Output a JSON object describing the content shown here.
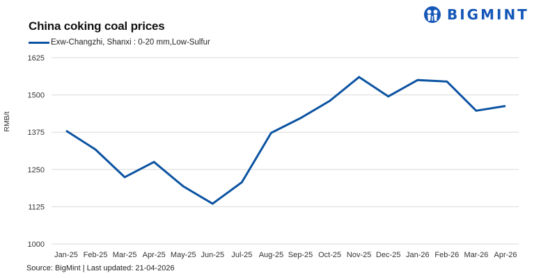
{
  "header": {
    "title": "China coking coal prices",
    "logo_text": "BIGMINT",
    "logo_icon": "bigmint-people-icon"
  },
  "legend": {
    "items": [
      {
        "label": "Exw-Changzhi, Shanxi : 0-20 mm,Low-Sulfur",
        "color": "#0B53A1"
      }
    ]
  },
  "axis": {
    "ylabel": "RMB/t",
    "yticks": [
      "1625",
      "1500",
      "1375",
      "1250",
      "1125",
      "1000"
    ]
  },
  "footer": {
    "source": "Source: BigMint | Last updated: 21-04-2026"
  },
  "colors": {
    "line": "#0B53A1",
    "brand": "#1557B8",
    "grid": "#D9D9D9"
  },
  "chart_data": {
    "type": "line",
    "title": "China coking coal prices",
    "xlabel": "",
    "ylabel": "RMB/t",
    "ylim": [
      1000,
      1625
    ],
    "yticks": [
      1000,
      1125,
      1250,
      1375,
      1500,
      1625
    ],
    "grid": true,
    "legend_position": "top-left",
    "categories": [
      "Jan-25",
      "Feb-25",
      "Mar-25",
      "Apr-25",
      "May-25",
      "Jun-25",
      "Jul-25",
      "Aug-25",
      "Sep-25",
      "Oct-25",
      "Nov-25",
      "Dec-25",
      "Jan-26",
      "Feb-26",
      "Mar-26",
      "Apr-26"
    ],
    "series": [
      {
        "name": "Exw-Changzhi, Shanxi : 0-20 mm,Low-Sulfur",
        "values": [
          1380,
          1317,
          1224,
          1275,
          1193,
          1135,
          1207,
          1373,
          1422,
          1480,
          1560,
          1495,
          1550,
          1545,
          1447,
          1463
        ]
      }
    ],
    "source": "Source: BigMint | Last updated: 21-04-2026"
  }
}
